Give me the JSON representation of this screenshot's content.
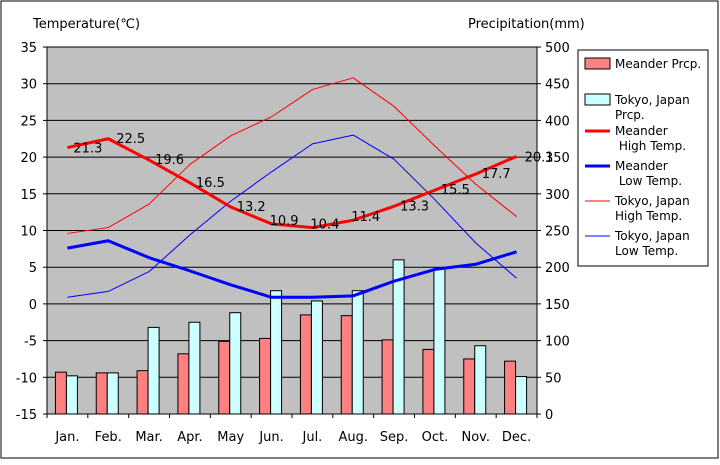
{
  "chart_data": {
    "type": "bar+line",
    "y_left_label": "Temperature(℃)",
    "y_right_label": "Precipitation(mm)",
    "y_left_range": [
      -15,
      35
    ],
    "y_left_ticks": [
      35,
      30,
      25,
      20,
      15,
      10,
      5,
      0,
      -5,
      -10,
      -15
    ],
    "y_right_range": [
      0,
      500
    ],
    "y_right_ticks": [
      500,
      450,
      400,
      350,
      300,
      250,
      200,
      150,
      100,
      50,
      0
    ],
    "categories": [
      "Jan.",
      "Feb.",
      "Mar.",
      "Apr.",
      "May",
      "Jun.",
      "Jul.",
      "Aug.",
      "Sep.",
      "Oct.",
      "Nov.",
      "Dec."
    ],
    "grid": "horizontal",
    "plot_background": "#c0c0c0",
    "legend_position": "right",
    "bar_series": [
      {
        "name": "Meander Prcp.",
        "legend_label": "Meander Prcp.",
        "color": "#ff8080",
        "axis": "right",
        "values": [
          57,
          56,
          59,
          82,
          99,
          103,
          135,
          134,
          101,
          88,
          75,
          72
        ]
      },
      {
        "name": "Tokyo, Japan Prcp.",
        "legend_label": "Tokyo, Japan\nPrcp.",
        "color": "#ccffff",
        "axis": "right",
        "values": [
          52,
          56,
          118,
          125,
          138,
          168,
          154,
          168,
          210,
          198,
          93,
          51
        ]
      }
    ],
    "line_series": [
      {
        "name": "Meander High Temp.",
        "legend_label": "Meander\n High Temp.",
        "color": "#ff0000",
        "width": 3,
        "axis": "left",
        "values": [
          21.3,
          22.5,
          19.6,
          16.5,
          13.2,
          10.9,
          10.4,
          11.4,
          13.3,
          15.5,
          17.7,
          20.1
        ],
        "data_labels": [
          "21.3",
          "22.5",
          "19.6",
          "16.5",
          "13.2",
          "10.9",
          "10.4",
          "11.4",
          "13.3",
          "15.5",
          "17.7",
          "20.1"
        ]
      },
      {
        "name": "Meander Low Temp.",
        "legend_label": "Meander\n Low Temp.",
        "color": "#0000ff",
        "width": 3,
        "axis": "left",
        "values": [
          7.6,
          8.6,
          6.3,
          4.5,
          2.6,
          0.9,
          0.9,
          1.1,
          3.1,
          4.7,
          5.4,
          7.1
        ]
      },
      {
        "name": "Tokyo, Japan High Temp.",
        "legend_label": "Tokyo, Japan\nHigh Temp.",
        "color": "#ff0000",
        "width": 1,
        "axis": "left",
        "values": [
          9.6,
          10.4,
          13.6,
          19.0,
          22.9,
          25.5,
          29.2,
          30.8,
          26.9,
          21.5,
          16.3,
          11.9
        ]
      },
      {
        "name": "Tokyo, Japan Low Temp.",
        "legend_label": "Tokyo, Japan\nLow Temp.",
        "color": "#0000ff",
        "width": 1,
        "axis": "left",
        "values": [
          0.9,
          1.7,
          4.4,
          9.4,
          14.0,
          18.0,
          21.8,
          23.0,
          19.7,
          14.2,
          8.3,
          3.5
        ]
      }
    ]
  }
}
